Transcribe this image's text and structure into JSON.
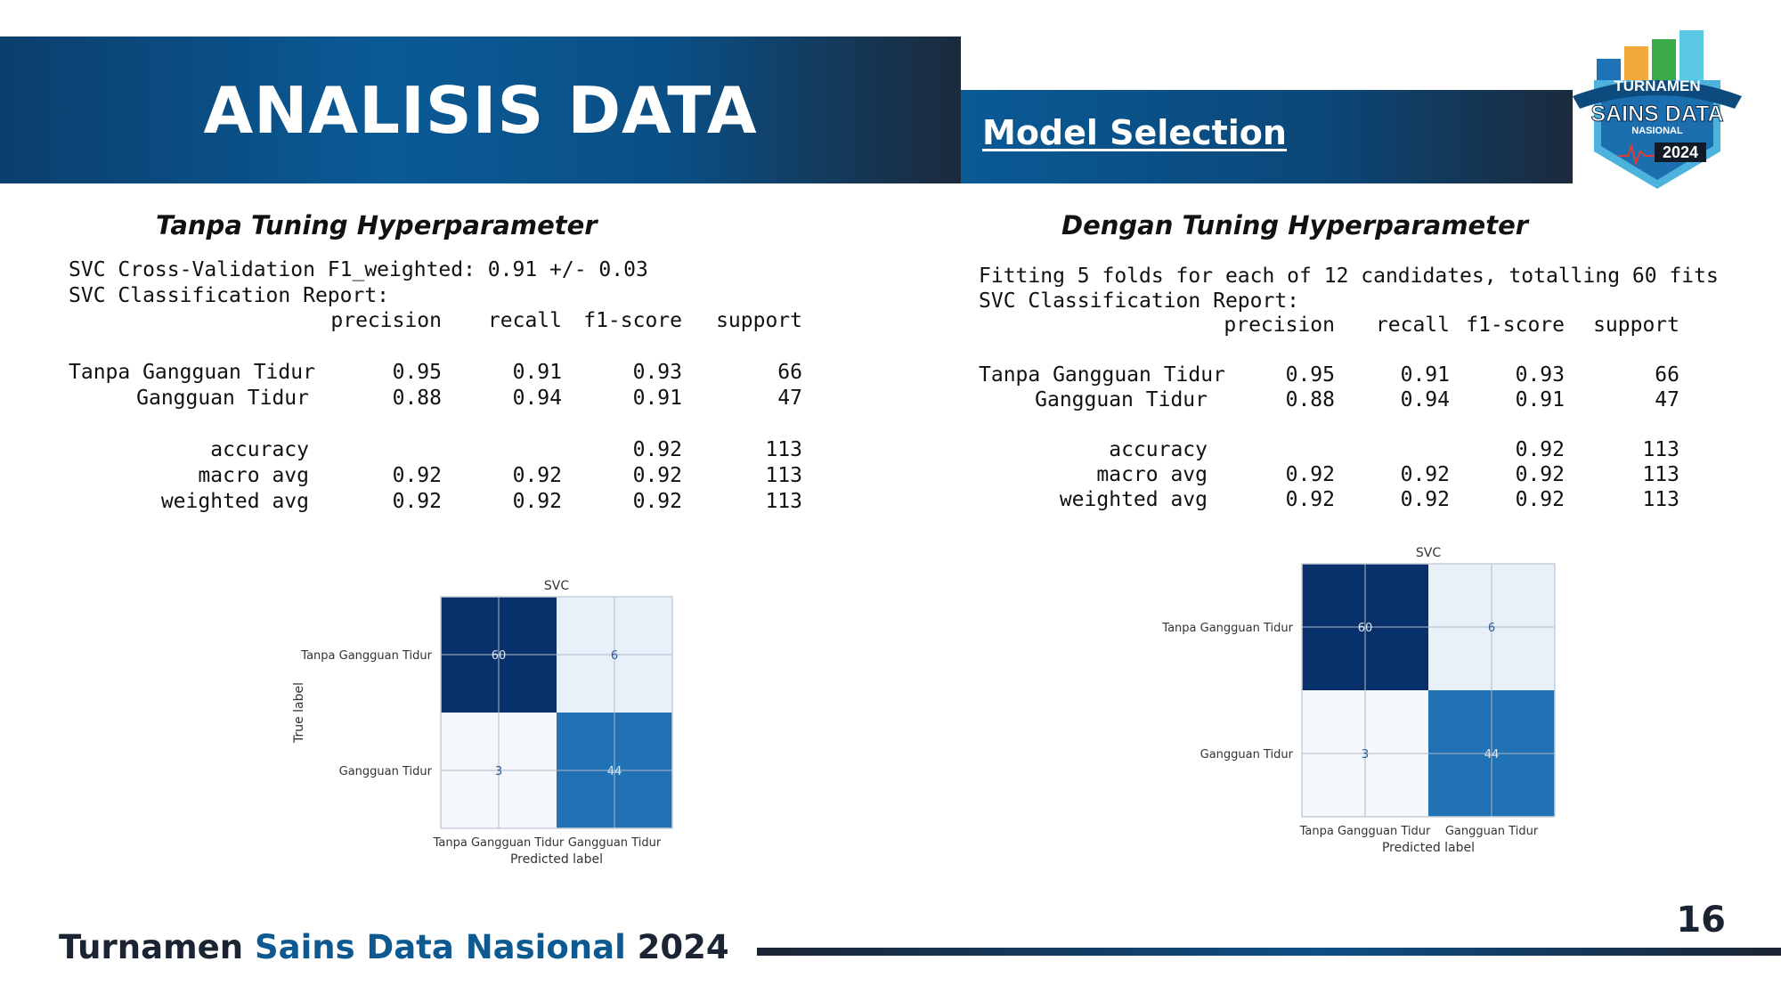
{
  "header": {
    "title": "ANALISIS DATA",
    "subtitle": "Model Selection"
  },
  "logo": {
    "line1": "TURNAMEN",
    "line2": "SAINS DATA",
    "line3": "NASIONAL",
    "year": "2024"
  },
  "colors": {
    "primary_blue": "#0a5a96",
    "dark_navy": "#1b2433",
    "cm_dark": "#08306b",
    "cm_mid": "#2171b5",
    "cm_light": "#e8f1fa",
    "cm_lightest": "#f4f8fd"
  },
  "left_panel": {
    "heading": "Tanpa Tuning Hyperparameter",
    "line1": "SVC Cross-Validation F1_weighted: 0.91 +/- 0.03",
    "line2": "SVC Classification Report:",
    "columns": [
      "precision",
      "recall",
      "f1-score",
      "support"
    ],
    "rows": [
      {
        "label": "Tanpa Gangguan Tidur",
        "precision": "0.95",
        "recall": "0.91",
        "f1": "0.93",
        "support": "66"
      },
      {
        "label": "Gangguan Tidur",
        "precision": "0.88",
        "recall": "0.94",
        "f1": "0.91",
        "support": "47"
      },
      {
        "label": "accuracy",
        "precision": "",
        "recall": "",
        "f1": "0.92",
        "support": "113"
      },
      {
        "label": "macro avg",
        "precision": "0.92",
        "recall": "0.92",
        "f1": "0.92",
        "support": "113"
      },
      {
        "label": "weighted avg",
        "precision": "0.92",
        "recall": "0.92",
        "f1": "0.92",
        "support": "113"
      }
    ],
    "confusion_matrix": {
      "title": "SVC",
      "ylabel": "True label",
      "xlabel": "Predicted label",
      "class_labels": [
        "Tanpa Gangguan Tidur",
        "Gangguan Tidur"
      ],
      "values": [
        [
          60,
          6
        ],
        [
          3,
          44
        ]
      ]
    }
  },
  "right_panel": {
    "heading": "Dengan Tuning Hyperparameter",
    "line1": "Fitting 5 folds for each of 12 candidates, totalling 60 fits",
    "line2": "SVC Classification Report:",
    "columns": [
      "precision",
      "recall",
      "f1-score",
      "support"
    ],
    "rows": [
      {
        "label": "Tanpa Gangguan Tidur",
        "precision": "0.95",
        "recall": "0.91",
        "f1": "0.93",
        "support": "66"
      },
      {
        "label": "Gangguan Tidur",
        "precision": "0.88",
        "recall": "0.94",
        "f1": "0.91",
        "support": "47"
      },
      {
        "label": "accuracy",
        "precision": "",
        "recall": "",
        "f1": "0.92",
        "support": "113"
      },
      {
        "label": "macro avg",
        "precision": "0.92",
        "recall": "0.92",
        "f1": "0.92",
        "support": "113"
      },
      {
        "label": "weighted avg",
        "precision": "0.92",
        "recall": "0.92",
        "f1": "0.92",
        "support": "113"
      }
    ],
    "confusion_matrix": {
      "title": "SVC",
      "xlabel": "Predicted label",
      "class_labels": [
        "Tanpa Gangguan Tidur",
        "Gangguan Tidur"
      ],
      "values": [
        [
          60,
          6
        ],
        [
          3,
          44
        ]
      ]
    }
  },
  "footer": {
    "text_dark": "Turnamen ",
    "text_blue": "Sains Data Nasional",
    "text_year": " 2024",
    "page_number": "16"
  }
}
